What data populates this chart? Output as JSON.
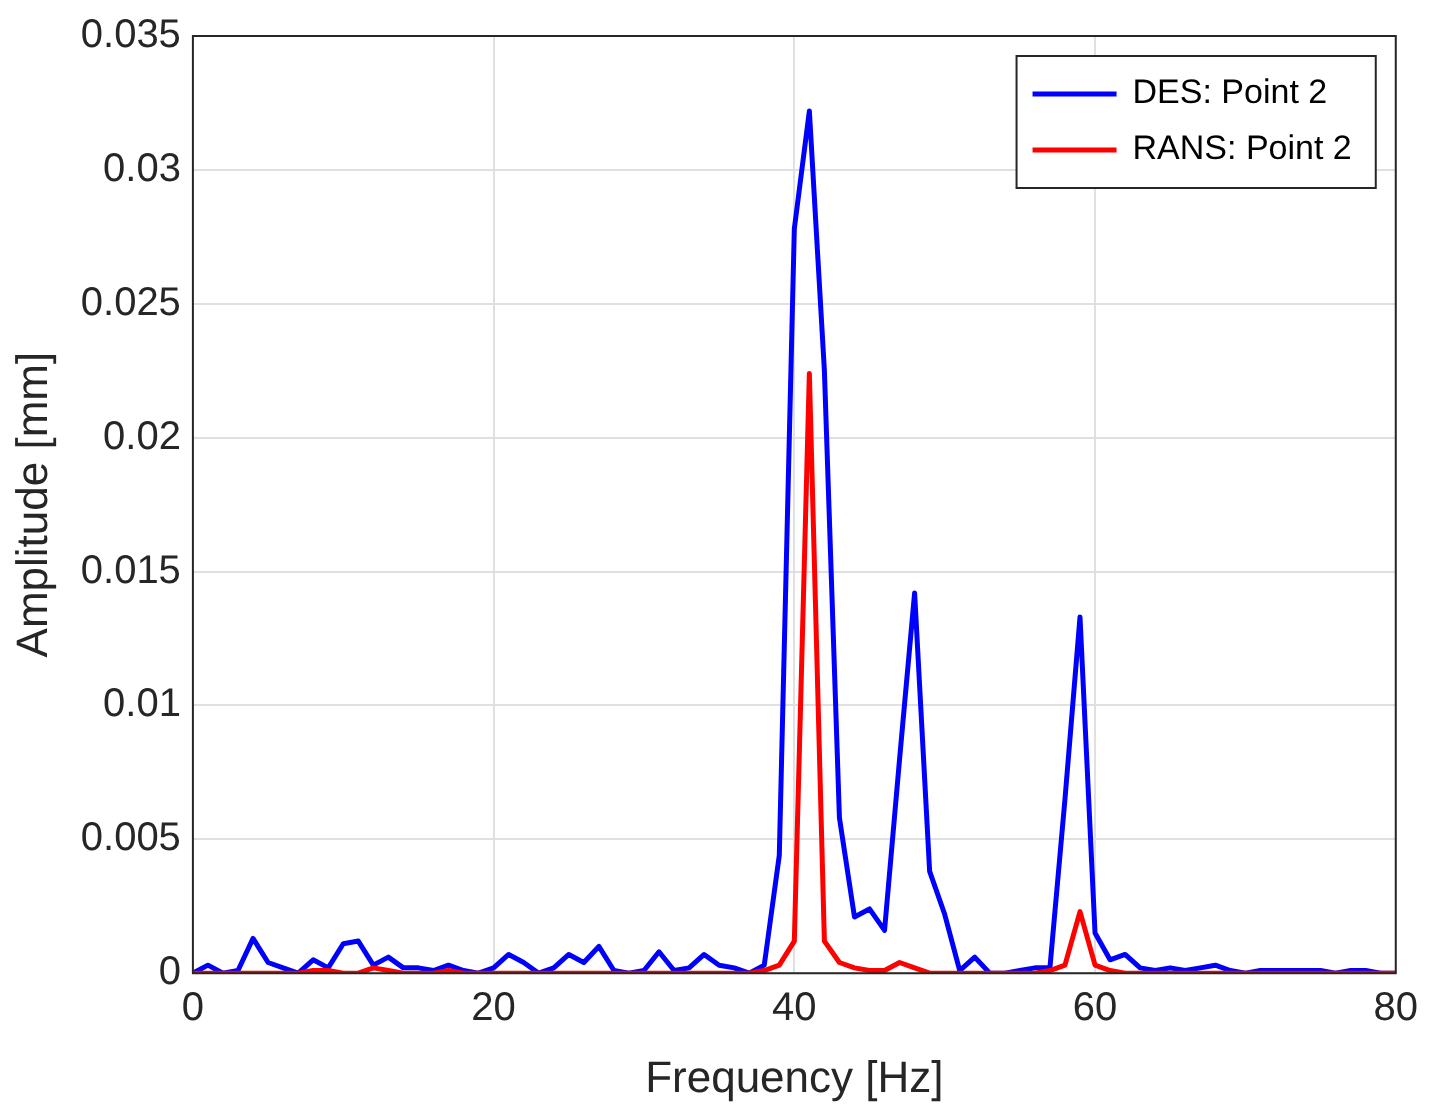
{
  "chart_data": {
    "type": "line",
    "xlabel": "Frequency [Hz]",
    "ylabel": "Amplitude [mm]",
    "x": [
      0,
      1,
      2,
      3,
      4,
      5,
      6,
      7,
      8,
      9,
      10,
      11,
      12,
      13,
      14,
      15,
      16,
      17,
      18,
      19,
      20,
      21,
      22,
      23,
      24,
      25,
      26,
      27,
      28,
      29,
      30,
      31,
      32,
      33,
      34,
      35,
      36,
      37,
      38,
      39,
      40,
      41,
      42,
      43,
      44,
      45,
      46,
      47,
      48,
      49,
      50,
      51,
      52,
      53,
      54,
      55,
      56,
      57,
      58,
      59,
      60,
      61,
      62,
      63,
      64,
      65,
      66,
      67,
      68,
      69,
      70,
      71,
      72,
      73,
      74,
      75,
      76,
      77,
      78,
      79,
      80
    ],
    "series": [
      {
        "name": "DES: Point 2",
        "color": "#0000ff",
        "values": [
          0,
          0.0003,
          0,
          0.0001,
          0.0013,
          0.0004,
          0.0002,
          0,
          0.0005,
          0.0002,
          0.0011,
          0.0012,
          0.0003,
          0.0006,
          0.0002,
          0.0002,
          0.0001,
          0.0003,
          0.0001,
          0,
          0.0002,
          0.0007,
          0.0004,
          0,
          0.0002,
          0.0007,
          0.0004,
          0.001,
          0.0001,
          0,
          0.0001,
          0.0008,
          0.0001,
          0.0002,
          0.0007,
          0.0003,
          0.0002,
          0,
          0.0003,
          0.0044,
          0.0278,
          0.0322,
          0.0225,
          0.0058,
          0.0021,
          0.0024,
          0.0016,
          0.008,
          0.0142,
          0.0038,
          0.0022,
          0.0001,
          0.0006,
          0,
          0,
          0.0001,
          0.0002,
          0.0002,
          0.0065,
          0.0133,
          0.0015,
          0.0005,
          0.0007,
          0.0002,
          0.0001,
          0.0002,
          0.0001,
          0.0002,
          0.0003,
          0.0001,
          0,
          0.0001,
          0.0001,
          0.0001,
          0.0001,
          0.0001,
          0,
          0.0001,
          0.0001,
          0,
          0
        ]
      },
      {
        "name": "RANS: Point 2",
        "color": "#ff0000",
        "values": [
          0,
          0,
          0,
          0,
          0,
          0,
          0,
          0,
          0.0001,
          0.0001,
          0,
          0,
          0.0002,
          0.0001,
          0,
          0,
          0,
          0.0001,
          0,
          0,
          0,
          0,
          0,
          0,
          0,
          0,
          0,
          0,
          0,
          0,
          0,
          0,
          0,
          0,
          0,
          0,
          0,
          0,
          0.0001,
          0.0003,
          0.0012,
          0.0224,
          0.0012,
          0.0004,
          0.0002,
          0.0001,
          0.0001,
          0.0004,
          0.0002,
          0,
          0,
          0,
          0,
          0,
          0,
          0,
          0,
          0.0001,
          0.0003,
          0.0023,
          0.0003,
          0.0001,
          0,
          0,
          0,
          0,
          0,
          0,
          0,
          0,
          0,
          0,
          0,
          0,
          0,
          0,
          0,
          0,
          0,
          0,
          0
        ]
      }
    ],
    "xlim": [
      0,
      80
    ],
    "xticks": [
      0,
      20,
      40,
      60,
      80
    ],
    "ylim": [
      0,
      0.035
    ],
    "yticks": [
      0,
      0.005,
      0.01,
      0.015,
      0.02,
      0.025,
      0.03,
      0.035
    ],
    "grid": true,
    "legend": "top right",
    "marker": "none",
    "line_style": "solid"
  }
}
